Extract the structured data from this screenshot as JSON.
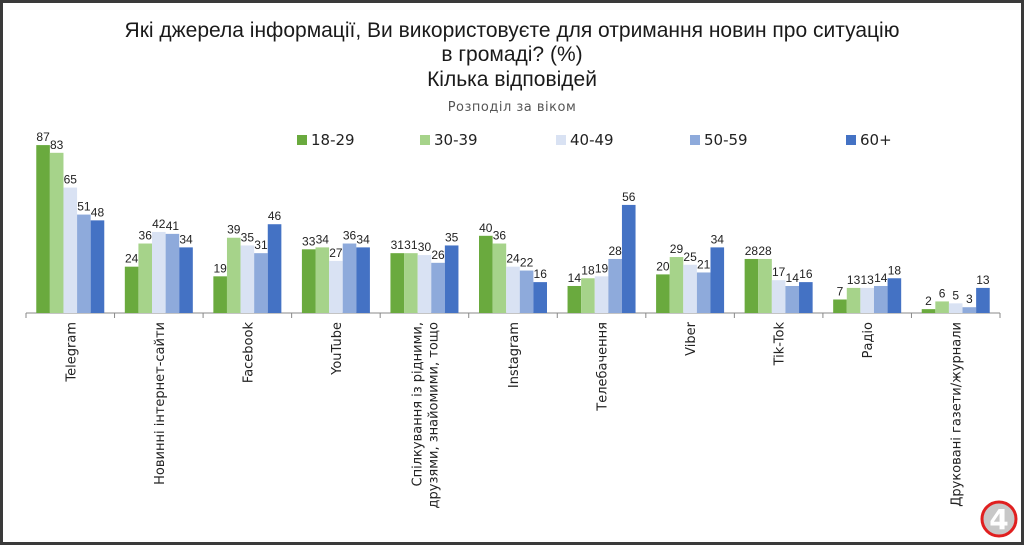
{
  "chart_data": {
    "type": "bar",
    "title": "Які джерела інформації, Ви використовуєте  для отримання новин про ситуацію\nв громаді? (%)\nКілька відповідей",
    "title_lines": [
      "Які джерела інформації, Ви використовуєте  для отримання новин про ситуацію",
      "в громаді? (%)",
      "Кілька відповідей"
    ],
    "subtitle": "Розподіл за віком",
    "categories": [
      "Telegram",
      "Новинні інтернет-сайти",
      "Facebook",
      "YouTube",
      "Спілкування із рідними,\nдрузями, знайомими, тощо",
      "Instagram",
      "Телебачення",
      "Viber",
      "Tik-Tok",
      "Радіо",
      "Друковані газети/журнали"
    ],
    "series": [
      {
        "name": "18-29",
        "color": "#6aaa3e",
        "values": [
          87,
          24,
          19,
          33,
          31,
          40,
          14,
          20,
          28,
          7,
          2
        ]
      },
      {
        "name": "30-39",
        "color": "#a6d38a",
        "values": [
          83,
          36,
          39,
          34,
          31,
          36,
          18,
          29,
          28,
          13,
          6
        ]
      },
      {
        "name": "40-49",
        "color": "#d9e2f3",
        "values": [
          65,
          42,
          35,
          27,
          30,
          24,
          19,
          25,
          17,
          13,
          5
        ]
      },
      {
        "name": "50-59",
        "color": "#8eaadb",
        "values": [
          51,
          41,
          31,
          36,
          26,
          22,
          28,
          21,
          14,
          14,
          3
        ]
      },
      {
        "name": "60+",
        "color": "#4472c4",
        "values": [
          48,
          34,
          46,
          34,
          35,
          16,
          56,
          34,
          16,
          18,
          13
        ]
      }
    ],
    "ylim": [
      0,
      90
    ],
    "grid": false,
    "legend": "top",
    "data_labels": true
  },
  "logo": {
    "text": "4",
    "ring_color": "#e02020"
  }
}
